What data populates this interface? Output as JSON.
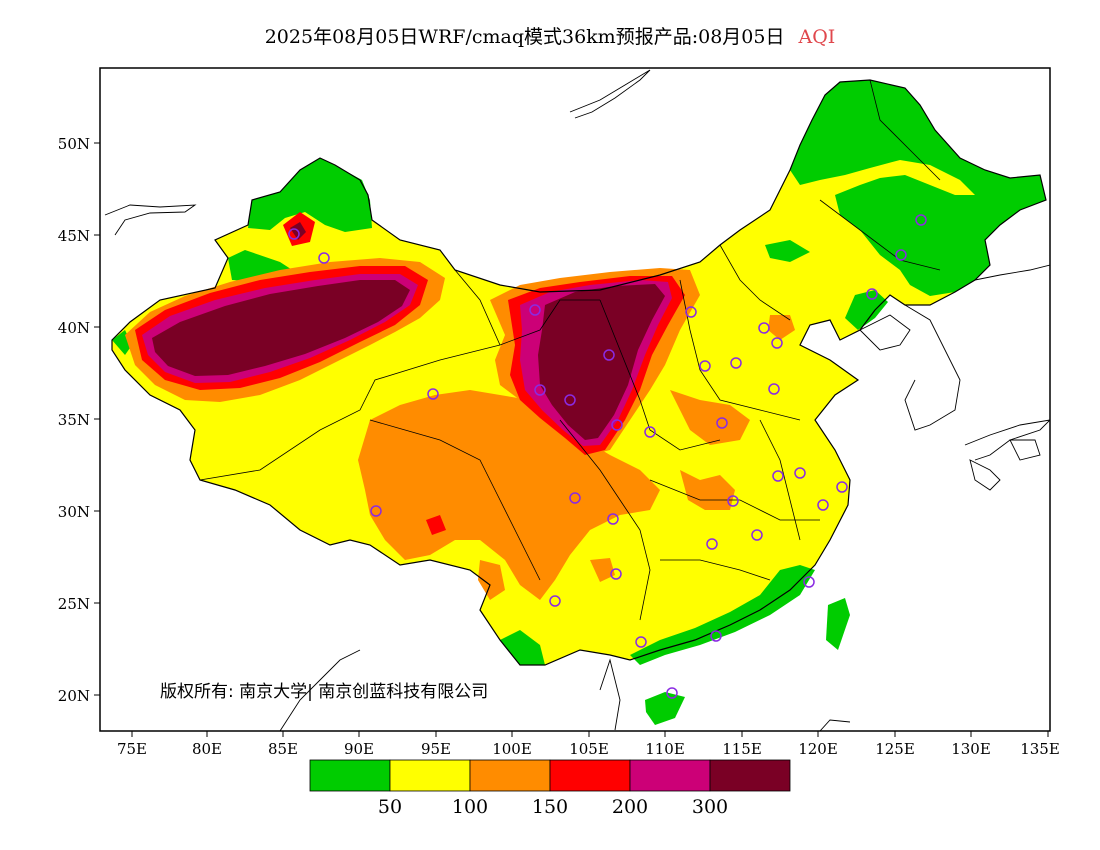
{
  "title": {
    "main": "2025年08月05日WRF/cmaq模式36km预报产品:08月05日",
    "variable": "AQI",
    "variable_color": "#e0474c"
  },
  "lat_labels": [
    "50N",
    "45N",
    "40N",
    "35N",
    "30N",
    "25N",
    "20N"
  ],
  "lon_labels": [
    "75E",
    "80E",
    "85E",
    "90E",
    "95E",
    "100E",
    "105E",
    "110E",
    "115E",
    "120E",
    "125E",
    "130E",
    "135E"
  ],
  "copyright": "版权所有: 南京大学| 南京创蓝科技有限公司",
  "colorbar": {
    "colors": [
      "#00cc00",
      "#ffff00",
      "#ff8c00",
      "#ff0000",
      "#cc0077",
      "#7a0025"
    ],
    "labels": [
      "50",
      "100",
      "150",
      "200",
      "300"
    ]
  },
  "level_colors": {
    "good": "#00cc00",
    "moderate": "#ffff00",
    "sensitive": "#ff8c00",
    "unhealthy": "#ff0000",
    "very_unhealthy": "#cc0077",
    "hazardous": "#7a0025"
  },
  "station_marker_color": "#8a2be2"
}
